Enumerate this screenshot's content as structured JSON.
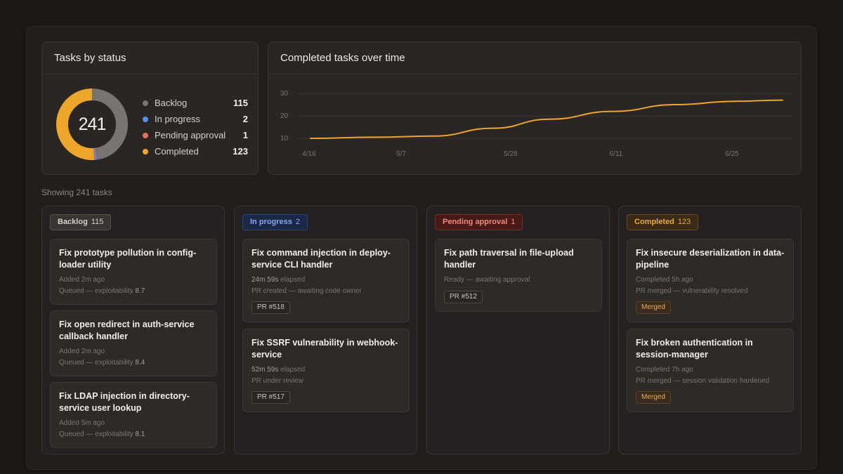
{
  "status_card": {
    "title": "Tasks by status",
    "total": "241",
    "items": [
      {
        "label": "Backlog",
        "count": "115",
        "color": "#7a7470",
        "value": 115
      },
      {
        "label": "In progress",
        "count": "2",
        "color": "#5b8def",
        "value": 2
      },
      {
        "label": "Pending approval",
        "count": "1",
        "color": "#e2705a",
        "value": 1
      },
      {
        "label": "Completed",
        "count": "123",
        "color": "#eda62b",
        "value": 123
      }
    ]
  },
  "chart_card": {
    "title": "Completed tasks over time"
  },
  "chart_data": {
    "type": "line",
    "title": "Completed tasks over time",
    "x": [
      "4/16",
      "5/1",
      "5/10",
      "5/20",
      "5/31",
      "6/10",
      "6/18",
      "6/25",
      "7/1"
    ],
    "y": [
      10,
      10.5,
      11,
      14.5,
      18.5,
      22,
      25,
      26.5,
      27
    ],
    "x_ticks": [
      "4/16",
      "5/7",
      "5/28",
      "6/11",
      "6/25"
    ],
    "y_ticks": [
      30,
      20,
      10
    ],
    "ylim": [
      10,
      30
    ],
    "line_color": "#eda62b",
    "grid": true
  },
  "showing": "Showing 241 tasks",
  "columns": [
    {
      "label": "Backlog",
      "count": "115",
      "tasks": [
        {
          "title": "Fix prototype pollution in config-loader utility",
          "line1": "Added 2m ago",
          "line2_prefix": "Queued — exploitability ",
          "line2_value": "8.7"
        },
        {
          "title": "Fix open redirect in auth-service callback handler",
          "line1": "Added 2m ago",
          "line2_prefix": "Queued — exploitability ",
          "line2_value": "8.4"
        },
        {
          "title": "Fix LDAP injection in directory-service user lookup",
          "line1": "Added 5m ago",
          "line2_prefix": "Queued — exploitability ",
          "line2_value": "8.1"
        }
      ]
    },
    {
      "label": "In progress",
      "count": "2",
      "tasks": [
        {
          "title": "Fix command injection in deploy-service CLI handler",
          "line1_value": "24m 59s",
          "line1_suffix": " elapsed",
          "line2": "PR created — awaiting code owner",
          "chip": "PR #518"
        },
        {
          "title": "Fix SSRF vulnerability in webhook-service",
          "line1_value": "52m 59s",
          "line1_suffix": " elapsed",
          "line2": "PR under review",
          "chip": "PR #517"
        }
      ]
    },
    {
      "label": "Pending approval",
      "count": "1",
      "tasks": [
        {
          "title": "Fix path traversal in file-upload handler",
          "line1": "Ready — awaiting approval",
          "chip": "PR #512"
        }
      ]
    },
    {
      "label": "Completed",
      "count": "123",
      "tasks": [
        {
          "title": "Fix insecure deserialization in data-pipeline",
          "line1": "Completed 5h ago",
          "line2": "PR merged — vulnerability resolved",
          "chip": "Merged"
        },
        {
          "title": "Fix broken authentication in session-manager",
          "line1": "Completed 7h ago",
          "line2": "PR merged — session validation hardened",
          "chip": "Merged"
        }
      ]
    }
  ]
}
